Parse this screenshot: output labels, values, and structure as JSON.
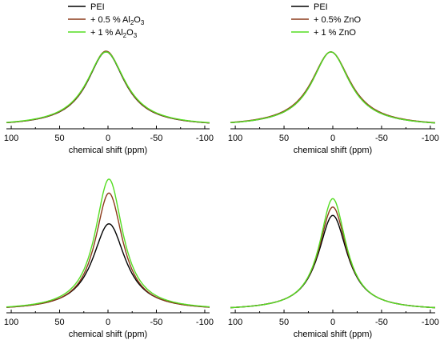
{
  "colors": {
    "series_0": "#000000",
    "series_1": "#8b3a1a",
    "series_2": "#55dd22"
  },
  "chart_data": [
    {
      "type": "line",
      "panel": "top-left",
      "xlabel": "chemical shift (ppm)",
      "ylabel": "",
      "xlim": [
        105,
        -105
      ],
      "xticks": [
        100,
        50,
        0,
        -50,
        -100
      ],
      "xtick_labels": [
        "100",
        "50",
        "0",
        "-50",
        "-100"
      ],
      "legend_position": "top",
      "legend": [
        {
          "sym": "PEI",
          "pre": "",
          "sub1": "",
          "mid": "",
          "sub2": ""
        },
        {
          "sym": "Al",
          "pre": "+ 0.5 % ",
          "sub1": "2",
          "mid": "O",
          "sub2": "3"
        },
        {
          "sym": "Al",
          "pre": "+   1  % ",
          "sub1": "2",
          "mid": "O",
          "sub2": "3"
        }
      ],
      "series": [
        {
          "name": "PEI",
          "peak_ppm": 2,
          "height": 1.0,
          "width_ppm": 30,
          "base": 0.0
        },
        {
          "name": "+ 0.5 % Al2O3",
          "peak_ppm": 2,
          "height": 1.01,
          "width_ppm": 30,
          "base": 0.0
        },
        {
          "name": "+ 1 % Al2O3",
          "peak_ppm": 2,
          "height": 1.0,
          "width_ppm": 31,
          "base": 0.0
        }
      ]
    },
    {
      "type": "line",
      "panel": "top-right",
      "xlabel": "chemical shift (ppm)",
      "ylabel": "",
      "xlim": [
        105,
        -105
      ],
      "xticks": [
        100,
        50,
        0,
        -50,
        -100
      ],
      "xtick_labels": [
        "100",
        "50",
        "0",
        "-50",
        "-100"
      ],
      "legend_position": "top",
      "legend": [
        {
          "sym": "PEI",
          "pre": "",
          "sub1": "",
          "mid": "",
          "sub2": ""
        },
        {
          "sym": "+ 0.5% ZnO",
          "pre": "",
          "sub1": "",
          "mid": "",
          "sub2": ""
        },
        {
          "sym": "+  1  % ZnO",
          "pre": "",
          "sub1": "",
          "mid": "",
          "sub2": ""
        }
      ],
      "series": [
        {
          "name": "PEI",
          "peak_ppm": 2,
          "height": 1.0,
          "width_ppm": 30,
          "base": 0.0
        },
        {
          "name": "+ 0.5% ZnO",
          "peak_ppm": 2,
          "height": 1.0,
          "width_ppm": 31,
          "base": 0.0
        },
        {
          "name": "+ 1 % ZnO",
          "peak_ppm": 2,
          "height": 1.0,
          "width_ppm": 30,
          "base": 0.0
        }
      ]
    },
    {
      "type": "line",
      "panel": "bottom-left",
      "xlabel": "chemical shift (ppm)",
      "ylabel": "",
      "xlim": [
        105,
        -105
      ],
      "xticks": [
        100,
        50,
        0,
        -50,
        -100
      ],
      "xtick_labels": [
        "100",
        "50",
        "0",
        "-50",
        "-100"
      ],
      "series": [
        {
          "name": "PEI",
          "peak_ppm": -1,
          "height": 0.62,
          "width_ppm": 26,
          "base": 0.0
        },
        {
          "name": "+ 0.5 % Al2O3",
          "peak_ppm": -1,
          "height": 0.84,
          "width_ppm": 22,
          "base": 0.0
        },
        {
          "name": "+ 1 % Al2O3",
          "peak_ppm": -1,
          "height": 0.94,
          "width_ppm": 22,
          "base": 0.0
        }
      ]
    },
    {
      "type": "line",
      "panel": "bottom-right",
      "xlabel": "chemical shift (ppm)",
      "ylabel": "",
      "xlim": [
        105,
        -105
      ],
      "xticks": [
        100,
        50,
        0,
        -50,
        -100
      ],
      "xtick_labels": [
        "100",
        "50",
        "0",
        "-50",
        "-100"
      ],
      "series": [
        {
          "name": "PEI",
          "peak_ppm": 0,
          "height": 0.68,
          "width_ppm": 23,
          "base": 0.0
        },
        {
          "name": "+ 0.5% ZnO",
          "peak_ppm": 0,
          "height": 0.74,
          "width_ppm": 22,
          "base": 0.0
        },
        {
          "name": "+ 1 % ZnO",
          "peak_ppm": 0,
          "height": 0.8,
          "width_ppm": 21,
          "base": 0.0
        }
      ]
    }
  ]
}
